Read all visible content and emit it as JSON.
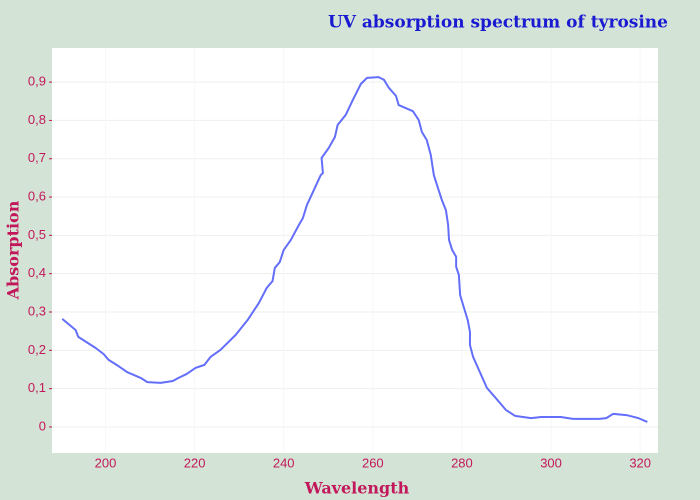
{
  "chart_data": {
    "type": "line",
    "title": "UV absorption spectrum of tyrosine",
    "x_label": "Wavelength",
    "y_label": "Absorption",
    "x": [
      190.3,
      193.3,
      193.9,
      197.8,
      199.6,
      200.7,
      202.9,
      204.9,
      207.9,
      209.4,
      212.4,
      215.1,
      216.4,
      218.2,
      220.2,
      222.2,
      223.6,
      225.8,
      229.2,
      231.9,
      234.4,
      236.2,
      237.5,
      238.0,
      239.1,
      240.0,
      241.6,
      243.4,
      244.3,
      245.2,
      247.0,
      248.3,
      248.8,
      248.5,
      250.1,
      251.5,
      252.1,
      253.9,
      255.5,
      257.3,
      258.7,
      261.3,
      262.5,
      263.6,
      265.2,
      265.8,
      269.0,
      270.3,
      271.0,
      272.1,
      273.0,
      273.7,
      274.6,
      275.5,
      276.4,
      276.9,
      277.1,
      277.8,
      278.7,
      278.7,
      279.3,
      279.6,
      280.4,
      281.3,
      281.8,
      281.8,
      282.5,
      283.8,
      285.6,
      287.4,
      289.9,
      291.9,
      295.5,
      297.8,
      302.2,
      304.9,
      310.8,
      312.4,
      313.9,
      316.9,
      319.6,
      321.6
    ],
    "series": [
      {
        "name": "Absorption",
        "color": "#636efa",
        "values": [
          0.282,
          0.253,
          0.235,
          0.206,
          0.19,
          0.175,
          0.159,
          0.143,
          0.128,
          0.117,
          0.115,
          0.12,
          0.128,
          0.138,
          0.154,
          0.162,
          0.183,
          0.201,
          0.24,
          0.279,
          0.323,
          0.363,
          0.381,
          0.415,
          0.43,
          0.462,
          0.488,
          0.527,
          0.545,
          0.579,
          0.624,
          0.657,
          0.663,
          0.702,
          0.728,
          0.757,
          0.788,
          0.814,
          0.853,
          0.895,
          0.911,
          0.913,
          0.906,
          0.885,
          0.864,
          0.84,
          0.824,
          0.801,
          0.77,
          0.749,
          0.71,
          0.657,
          0.624,
          0.592,
          0.566,
          0.527,
          0.488,
          0.462,
          0.444,
          0.418,
          0.397,
          0.344,
          0.313,
          0.279,
          0.248,
          0.214,
          0.183,
          0.149,
          0.102,
          0.078,
          0.044,
          0.029,
          0.023,
          0.026,
          0.026,
          0.021,
          0.021,
          0.023,
          0.034,
          0.031,
          0.023,
          0.013
        ]
      }
    ],
    "xlim": [
      188,
      324
    ],
    "xticks": [
      200,
      220,
      240,
      260,
      280,
      300,
      320
    ],
    "ylim": [
      -0.068,
      0.989
    ],
    "yticks": [
      0,
      {
        "value": 0.1,
        "label": "0,1"
      },
      {
        "value": 0.2,
        "label": "0,2"
      },
      {
        "value": 0.3,
        "label": "0,3"
      },
      {
        "value": 0.4,
        "label": "0,4"
      },
      {
        "value": 0.5,
        "label": "0,5"
      },
      {
        "value": 0.6,
        "label": "0,6"
      },
      {
        "value": 0.7,
        "label": "0,7"
      },
      {
        "value": 0.8,
        "label": "0,8"
      },
      {
        "value": 0.9,
        "label": "0,9"
      }
    ],
    "grid": true
  }
}
